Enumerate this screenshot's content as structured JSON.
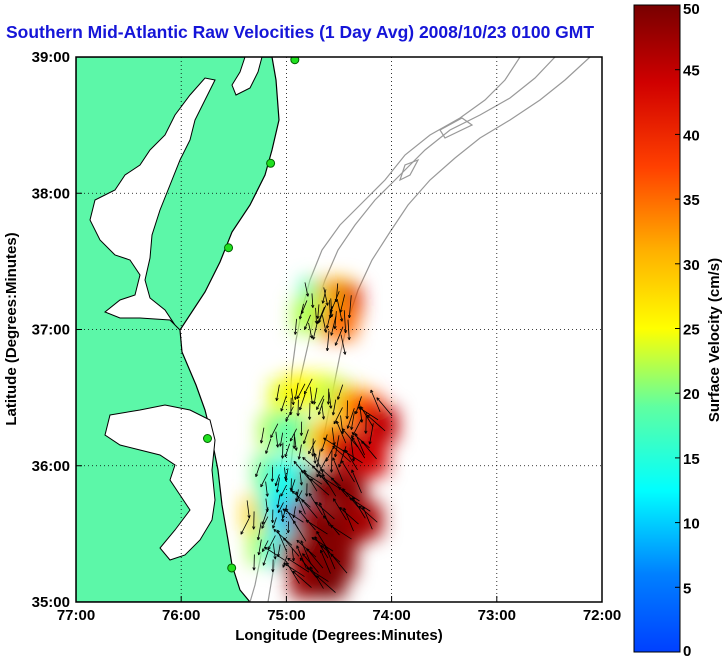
{
  "title": "Southern Mid-Atlantic Raw Velocities (1 Day Avg) 2008/10/23 0100 GMT",
  "chart_data": {
    "type": "heatmap",
    "title": "Southern Mid-Atlantic Raw Velocities (1 Day Avg) 2008/10/23 0100 GMT",
    "xlabel": "Longitude (Degrees:Minutes)",
    "ylabel": "Latitude (Degrees:Minutes)",
    "xlim": [
      -77,
      -72
    ],
    "ylim": [
      35,
      39
    ],
    "x_ticks": [
      {
        "value": -77,
        "label": "77:00"
      },
      {
        "value": -76,
        "label": "76:00"
      },
      {
        "value": -75,
        "label": "75:00"
      },
      {
        "value": -74,
        "label": "74:00"
      },
      {
        "value": -73,
        "label": "73:00"
      },
      {
        "value": -72,
        "label": "72:00"
      }
    ],
    "y_ticks": [
      {
        "value": 35,
        "label": "35:00"
      },
      {
        "value": 36,
        "label": "36:00"
      },
      {
        "value": 37,
        "label": "37:00"
      },
      {
        "value": 38,
        "label": "38:00"
      },
      {
        "value": 39,
        "label": "39:00"
      }
    ],
    "grid": true,
    "colorbar": {
      "label": "Surface Velocity (cm/s)",
      "min": 0,
      "max": 50,
      "ticks": [
        0,
        5,
        10,
        15,
        20,
        25,
        30,
        35,
        40,
        45,
        50
      ],
      "colormap": "jet"
    },
    "velocity_cells": [
      {
        "lon": -74.7,
        "lat": 37.25,
        "speed": 18
      },
      {
        "lon": -74.55,
        "lat": 37.25,
        "speed": 30
      },
      {
        "lon": -74.45,
        "lat": 37.2,
        "speed": 42
      },
      {
        "lon": -74.62,
        "lat": 37.12,
        "speed": 28
      },
      {
        "lon": -74.78,
        "lat": 37.1,
        "speed": 22
      },
      {
        "lon": -74.5,
        "lat": 37.05,
        "speed": 35
      },
      {
        "lon": -75.0,
        "lat": 36.5,
        "speed": 24
      },
      {
        "lon": -74.85,
        "lat": 36.55,
        "speed": 26
      },
      {
        "lon": -74.7,
        "lat": 36.55,
        "speed": 25
      },
      {
        "lon": -74.55,
        "lat": 36.5,
        "speed": 22
      },
      {
        "lon": -74.4,
        "lat": 36.45,
        "speed": 30
      },
      {
        "lon": -74.25,
        "lat": 36.4,
        "speed": 38
      },
      {
        "lon": -74.1,
        "lat": 36.3,
        "speed": 45
      },
      {
        "lon": -75.1,
        "lat": 36.25,
        "speed": 22
      },
      {
        "lon": -74.95,
        "lat": 36.25,
        "speed": 17
      },
      {
        "lon": -74.8,
        "lat": 36.2,
        "speed": 20
      },
      {
        "lon": -74.65,
        "lat": 36.2,
        "speed": 28
      },
      {
        "lon": -74.5,
        "lat": 36.15,
        "speed": 40
      },
      {
        "lon": -74.35,
        "lat": 36.1,
        "speed": 46
      },
      {
        "lon": -74.2,
        "lat": 36.05,
        "speed": 44
      },
      {
        "lon": -75.15,
        "lat": 35.95,
        "speed": 20
      },
      {
        "lon": -75.0,
        "lat": 35.9,
        "speed": 12
      },
      {
        "lon": -74.88,
        "lat": 35.9,
        "speed": 14
      },
      {
        "lon": -74.7,
        "lat": 35.85,
        "speed": 48
      },
      {
        "lon": -74.55,
        "lat": 35.85,
        "speed": 50
      },
      {
        "lon": -74.4,
        "lat": 35.8,
        "speed": 49
      },
      {
        "lon": -75.25,
        "lat": 35.65,
        "speed": 28
      },
      {
        "lon": -75.1,
        "lat": 35.7,
        "speed": 15
      },
      {
        "lon": -74.98,
        "lat": 35.65,
        "speed": 10
      },
      {
        "lon": -74.8,
        "lat": 35.6,
        "speed": 47
      },
      {
        "lon": -74.6,
        "lat": 35.55,
        "speed": 50
      },
      {
        "lon": -74.4,
        "lat": 35.55,
        "speed": 49
      },
      {
        "lon": -74.25,
        "lat": 35.6,
        "speed": 47
      },
      {
        "lon": -75.2,
        "lat": 35.4,
        "speed": 22
      },
      {
        "lon": -75.05,
        "lat": 35.4,
        "speed": 13
      },
      {
        "lon": -74.9,
        "lat": 35.35,
        "speed": 46
      },
      {
        "lon": -74.7,
        "lat": 35.3,
        "speed": 50
      },
      {
        "lon": -74.5,
        "lat": 35.3,
        "speed": 49
      },
      {
        "lon": -74.8,
        "lat": 35.15,
        "speed": 48
      },
      {
        "lon": -74.6,
        "lat": 35.15,
        "speed": 50
      }
    ],
    "coastal_stations": [
      {
        "lon": -74.92,
        "lat": 38.98
      },
      {
        "lon": -75.15,
        "lat": 38.22
      },
      {
        "lon": -75.55,
        "lat": 37.6
      },
      {
        "lon": -75.75,
        "lat": 36.2
      },
      {
        "lon": -75.52,
        "lat": 35.25
      }
    ]
  }
}
